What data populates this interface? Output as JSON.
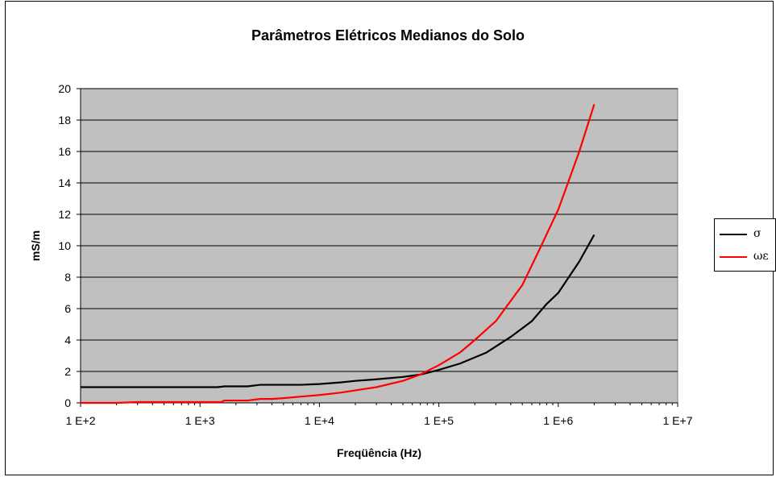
{
  "chart_data": {
    "type": "line",
    "title": "Parâmetros Elétricos Medianos do Solo",
    "xlabel": "Freqüência (Hz)",
    "ylabel": "mS/m",
    "x_scale": "log",
    "xlim": [
      100,
      10000000
    ],
    "ylim": [
      0,
      20
    ],
    "x_ticks": [
      100,
      1000,
      10000,
      100000,
      1000000,
      10000000
    ],
    "x_tick_labels": [
      "1 E+2",
      "1 E+3",
      "1 E+4",
      "1 E+5",
      "1 E+6",
      "1 E+7"
    ],
    "y_ticks": [
      0,
      2,
      4,
      6,
      8,
      10,
      12,
      14,
      16,
      18,
      20
    ],
    "y_tick_labels": [
      "0",
      "2",
      "4",
      "6",
      "8",
      "10",
      "12",
      "14",
      "16",
      "18",
      "20"
    ],
    "grid": "horizontal",
    "plot_background": "#c0c0c0",
    "legend_position": "right",
    "series": [
      {
        "name": "σ",
        "color": "#000000",
        "points": [
          [
            100,
            1.0
          ],
          [
            200,
            1.0
          ],
          [
            400,
            1.0
          ],
          [
            1000,
            1.0
          ],
          [
            1400,
            1.0
          ],
          [
            1600,
            1.05
          ],
          [
            2500,
            1.05
          ],
          [
            3200,
            1.15
          ],
          [
            5000,
            1.15
          ],
          [
            7000,
            1.15
          ],
          [
            10000,
            1.2
          ],
          [
            15000,
            1.3
          ],
          [
            20000,
            1.4
          ],
          [
            30000,
            1.5
          ],
          [
            50000,
            1.65
          ],
          [
            70000,
            1.8
          ],
          [
            100000,
            2.1
          ],
          [
            150000,
            2.5
          ],
          [
            250000,
            3.2
          ],
          [
            400000,
            4.2
          ],
          [
            600000,
            5.2
          ],
          [
            800000,
            6.3
          ],
          [
            1000000,
            7.0
          ],
          [
            1500000,
            9.0
          ],
          [
            2000000,
            10.7
          ]
        ]
      },
      {
        "name": "ωε",
        "color": "#ff0000",
        "points": [
          [
            100,
            0.0
          ],
          [
            200,
            0.0
          ],
          [
            300,
            0.05
          ],
          [
            500,
            0.05
          ],
          [
            1000,
            0.05
          ],
          [
            1500,
            0.05
          ],
          [
            1600,
            0.15
          ],
          [
            2500,
            0.15
          ],
          [
            3200,
            0.25
          ],
          [
            4000,
            0.25
          ],
          [
            5000,
            0.3
          ],
          [
            7000,
            0.4
          ],
          [
            10000,
            0.5
          ],
          [
            15000,
            0.65
          ],
          [
            20000,
            0.8
          ],
          [
            30000,
            1.0
          ],
          [
            50000,
            1.4
          ],
          [
            70000,
            1.8
          ],
          [
            100000,
            2.4
          ],
          [
            150000,
            3.2
          ],
          [
            200000,
            4.0
          ],
          [
            300000,
            5.2
          ],
          [
            500000,
            7.5
          ],
          [
            700000,
            9.8
          ],
          [
            1000000,
            12.3
          ],
          [
            1500000,
            16.0
          ],
          [
            2000000,
            19.0
          ]
        ]
      }
    ]
  }
}
